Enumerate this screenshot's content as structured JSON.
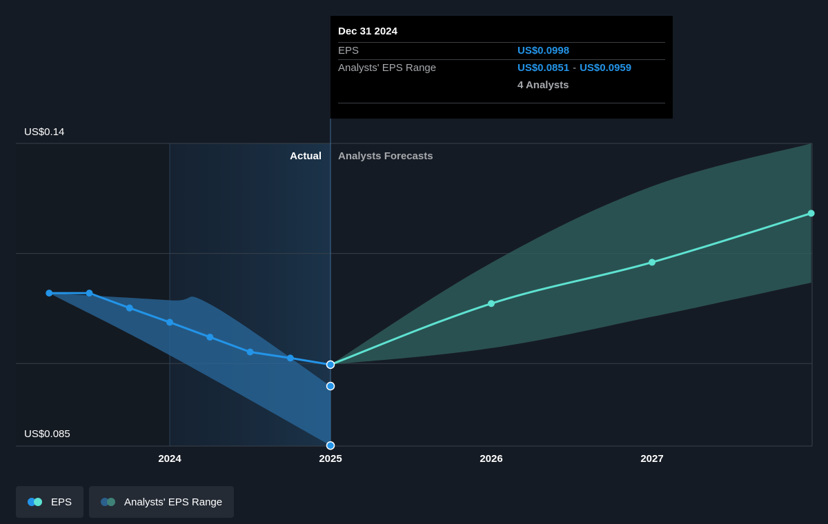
{
  "chart_data": {
    "type": "line",
    "x_ticks": [
      "2024",
      "2025",
      "2026",
      "2027"
    ],
    "y_labels": [
      "US$0.14",
      "US$0.085"
    ],
    "ylim": [
      0.085,
      0.14
    ],
    "section_labels": {
      "actual": "Actual",
      "forecast": "Analysts Forecasts"
    },
    "series": [
      {
        "name": "EPS",
        "points": [
          {
            "x": 2023.25,
            "y": 0.1128
          },
          {
            "x": 2023.5,
            "y": 0.1128
          },
          {
            "x": 2023.75,
            "y": 0.1101
          },
          {
            "x": 2024.0,
            "y": 0.1075
          },
          {
            "x": 2024.25,
            "y": 0.1048
          },
          {
            "x": 2024.5,
            "y": 0.1021
          },
          {
            "x": 2024.75,
            "y": 0.101
          },
          {
            "x": 2025.0,
            "y": 0.0998
          }
        ],
        "forecast": [
          {
            "x": 2025.0,
            "y": 0.0998
          },
          {
            "x": 2026.0,
            "y": 0.1109
          },
          {
            "x": 2027.0,
            "y": 0.1184
          },
          {
            "x": 2027.99,
            "y": 0.1273
          }
        ]
      },
      {
        "name": "Analysts' EPS Range",
        "actual_upper": [
          {
            "x": 2023.25,
            "y": 0.1128
          },
          {
            "x": 2024.0,
            "y": 0.1115
          },
          {
            "x": 2024.25,
            "y": 0.1108
          },
          {
            "x": 2025.0,
            "y": 0.0959
          }
        ],
        "actual_lower": [
          {
            "x": 2023.25,
            "y": 0.1128
          },
          {
            "x": 2024.0,
            "y": 0.1015
          },
          {
            "x": 2025.0,
            "y": 0.0851
          }
        ],
        "forecast_upper": [
          {
            "x": 2025.0,
            "y": 0.0998
          },
          {
            "x": 2026.0,
            "y": 0.1183
          },
          {
            "x": 2027.0,
            "y": 0.1322
          },
          {
            "x": 2027.99,
            "y": 0.14
          }
        ],
        "forecast_lower": [
          {
            "x": 2025.0,
            "y": 0.0998
          },
          {
            "x": 2026.0,
            "y": 0.1028
          },
          {
            "x": 2027.0,
            "y": 0.1085
          },
          {
            "x": 2027.99,
            "y": 0.1147
          }
        ]
      }
    ],
    "tooltip": {
      "date": "Dec 31 2024",
      "eps_label": "EPS",
      "eps_value": "US$0.0998",
      "range_label": "Analysts' EPS Range",
      "range_low": "US$0.0851",
      "range_sep": "-",
      "range_high": "US$0.0959",
      "analysts": "4 Analysts"
    },
    "legend": [
      "EPS",
      "Analysts' EPS Range"
    ],
    "colors": {
      "background": "#151b24",
      "past_highlight": "#1b3349",
      "eps_actual": "#2394e8",
      "eps_forecast": "#5ee2d1",
      "range_actual": "#2a6a9d",
      "range_forecast": "#2e5b59"
    }
  }
}
